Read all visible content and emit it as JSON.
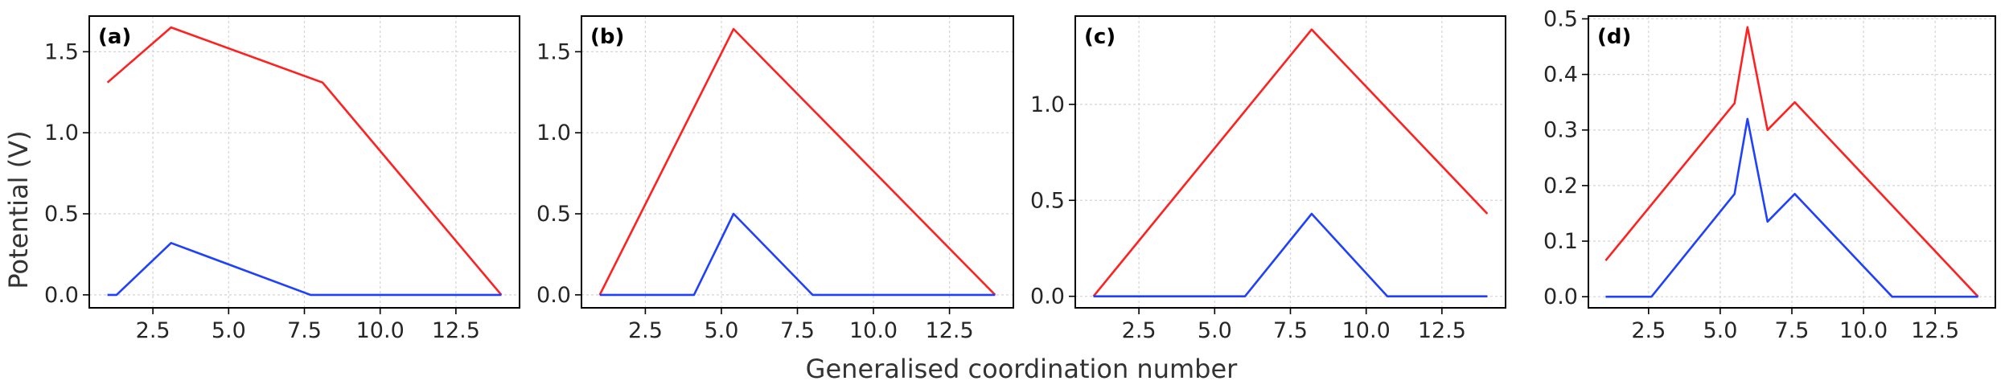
{
  "figure": {
    "ylabel": "Potential (V)",
    "xlabel": "Generalised coordination number"
  },
  "chart_data": [
    {
      "type": "line",
      "panel": "(a)",
      "xlim": [
        0.4,
        14.6
      ],
      "ylim": [
        -0.08,
        1.72
      ],
      "xticks": [
        2.5,
        5.0,
        7.5,
        10.0,
        12.5
      ],
      "xtick_labels": [
        "2.5",
        "5.0",
        "7.5",
        "10.0",
        "12.5"
      ],
      "yticks": [
        0.0,
        0.5,
        1.0,
        1.5
      ],
      "ytick_labels": [
        "0.0",
        "0.5",
        "1.0",
        "1.5"
      ],
      "grid": true,
      "series": [
        {
          "color": "#ff2020",
          "x": [
            1.0,
            3.1,
            8.1,
            14.0
          ],
          "y": [
            1.31,
            1.65,
            1.31,
            0.0
          ]
        },
        {
          "color": "#2040ff",
          "x": [
            1.0,
            1.3,
            3.1,
            7.7,
            14.0
          ],
          "y": [
            0.0,
            0.0,
            0.32,
            0.0,
            0.0
          ]
        }
      ]
    },
    {
      "type": "line",
      "panel": "(b)",
      "xlim": [
        0.4,
        14.6
      ],
      "ylim": [
        -0.08,
        1.72
      ],
      "xticks": [
        2.5,
        5.0,
        7.5,
        10.0,
        12.5
      ],
      "xtick_labels": [
        "2.5",
        "5.0",
        "7.5",
        "10.0",
        "12.5"
      ],
      "yticks": [
        0.0,
        0.5,
        1.0,
        1.5
      ],
      "ytick_labels": [
        "0.0",
        "0.5",
        "1.0",
        "1.5"
      ],
      "grid": true,
      "series": [
        {
          "color": "#ff2020",
          "x": [
            1.0,
            5.4,
            14.0
          ],
          "y": [
            0.0,
            1.64,
            0.0
          ]
        },
        {
          "color": "#2040ff",
          "x": [
            1.0,
            4.1,
            5.4,
            8.0,
            14.0
          ],
          "y": [
            0.0,
            0.0,
            0.5,
            0.0,
            0.0
          ]
        }
      ]
    },
    {
      "type": "line",
      "panel": "(c)",
      "xlim": [
        0.4,
        14.6
      ],
      "ylim": [
        -0.06,
        1.46
      ],
      "xticks": [
        2.5,
        5.0,
        7.5,
        10.0,
        12.5
      ],
      "xtick_labels": [
        "2.5",
        "5.0",
        "7.5",
        "10.0",
        "12.5"
      ],
      "yticks": [
        0.0,
        0.5,
        1.0
      ],
      "ytick_labels": [
        "0.0",
        "0.5",
        "1.0"
      ],
      "grid": true,
      "series": [
        {
          "color": "#ff2020",
          "x": [
            1.0,
            8.2,
            14.0
          ],
          "y": [
            0.0,
            1.39,
            0.43
          ]
        },
        {
          "color": "#2040ff",
          "x": [
            1.0,
            6.0,
            8.2,
            10.7,
            14.0
          ],
          "y": [
            0.0,
            0.0,
            0.43,
            0.0,
            0.0
          ]
        }
      ]
    },
    {
      "type": "line",
      "panel": "(d)",
      "xlim": [
        0.4,
        14.6
      ],
      "ylim": [
        -0.02,
        0.505
      ],
      "xticks": [
        2.5,
        5.0,
        7.5,
        10.0,
        12.5
      ],
      "xtick_labels": [
        "2.5",
        "5.0",
        "7.5",
        "10.0",
        "12.5"
      ],
      "yticks": [
        0.0,
        0.1,
        0.2,
        0.3,
        0.4,
        0.5
      ],
      "ytick_labels": [
        "0.0",
        "0.1",
        "0.2",
        "0.3",
        "0.4",
        "0.5"
      ],
      "grid": true,
      "series": [
        {
          "color": "#ff2020",
          "x": [
            1.0,
            5.5,
            5.95,
            6.65,
            7.6,
            14.0
          ],
          "y": [
            0.065,
            0.348,
            0.485,
            0.3,
            0.35,
            0.0
          ]
        },
        {
          "color": "#2040ff",
          "x": [
            1.0,
            2.6,
            5.5,
            5.95,
            6.65,
            7.6,
            11.0,
            14.0
          ],
          "y": [
            0.0,
            0.0,
            0.185,
            0.32,
            0.135,
            0.185,
            0.0,
            0.0
          ]
        }
      ]
    }
  ]
}
